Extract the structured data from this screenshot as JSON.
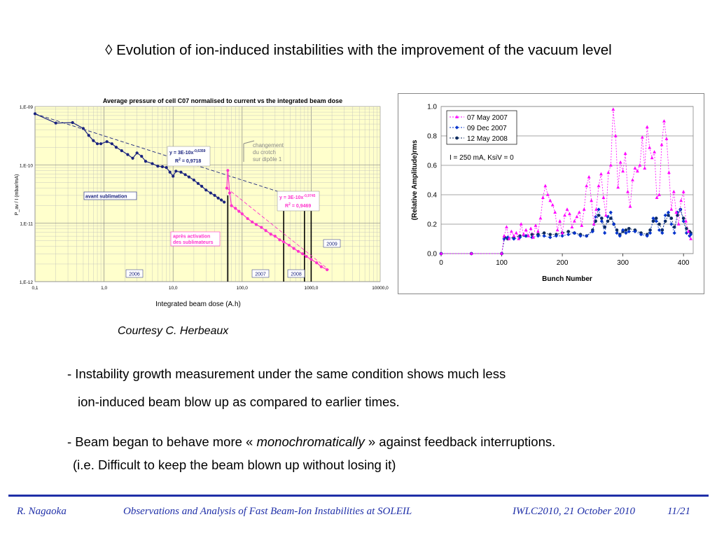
{
  "slide": {
    "title": "◊ Evolution of ion-induced instabilities with the improvement of the vacuum level",
    "courtesy": "Courtesy C. Herbeaux",
    "bullets": [
      "- Instability growth measurement under the same condition shows much less",
      "ion-induced beam blow up as compared to earlier times.",
      "- Beam began to behave more «",
      "monochromatically",
      "» against feedback interruptions.",
      "(i.e. Difficult to keep the beam blown up without losing it)"
    ],
    "footer": {
      "author": "R. Nagaoka",
      "talk": "Observations and Analysis of Fast Beam-Ion Instabilities at SOLEIL",
      "event": "IWLC2010, 21 October 2010",
      "page": "11/21"
    }
  },
  "chart_data": [
    {
      "type": "scatter",
      "title": "Average pressure of cell C07 normalised to current vs the integrated beam dose",
      "xlabel": "Integrated beam dose (A.h)",
      "ylabel": "P_av / I (mbar/mA)",
      "x_scale": "log",
      "y_scale": "log",
      "xlim": [
        0.1,
        10000
      ],
      "ylim": [
        1e-12,
        1e-09
      ],
      "x_ticks": [
        "0,1",
        "1,0",
        "10,0",
        "100,0",
        "1000,0",
        "10000,0"
      ],
      "y_ticks": [
        "1,E-12",
        "1,E-11",
        "1,E-10",
        "1,E-09"
      ],
      "grid": true,
      "series": [
        {
          "color": "#1a237e",
          "points": [
            [
              0.1,
              7.5e-10
            ],
            [
              0.2,
              5.2e-10
            ],
            [
              0.35,
              5.3e-10
            ],
            [
              0.5,
              4.2e-10
            ],
            [
              0.6,
              3.2e-10
            ],
            [
              0.7,
              2.6e-10
            ],
            [
              0.8,
              2.3e-10
            ],
            [
              0.9,
              2.3e-10
            ],
            [
              1.1,
              2.5e-10
            ],
            [
              1.3,
              2.3e-10
            ],
            [
              1.5,
              2e-10
            ],
            [
              1.8,
              1.75e-10
            ],
            [
              2.2,
              1.5e-10
            ],
            [
              2.6,
              1.3e-10
            ],
            [
              3.0,
              1.6e-10
            ],
            [
              3.5,
              1.4e-10
            ],
            [
              4,
              1.15e-10
            ],
            [
              5,
              1.05e-10
            ],
            [
              6,
              9.5e-11
            ],
            [
              7,
              9.3e-11
            ],
            [
              8,
              9e-11
            ],
            [
              9,
              7.5e-11
            ],
            [
              10,
              6.4e-11
            ],
            [
              11,
              7.8e-11
            ],
            [
              13,
              7.5e-11
            ],
            [
              15,
              6.8e-11
            ],
            [
              17,
              6.2e-11
            ],
            [
              20,
              5.5e-11
            ],
            [
              23,
              4.8e-11
            ],
            [
              26,
              4.3e-11
            ],
            [
              30,
              3.7e-11
            ],
            [
              35,
              3.3e-11
            ],
            [
              40,
              3e-11
            ],
            [
              45,
              2.7e-11
            ],
            [
              50,
              2.5e-11
            ],
            [
              55,
              2.3e-11
            ]
          ]
        },
        {
          "color": "#ff33cc",
          "points": [
            [
              60,
              4e-11
            ],
            [
              62,
              8e-11
            ],
            [
              66,
              3.3e-11
            ],
            [
              70,
              2e-11
            ],
            [
              80,
              1.8e-11
            ],
            [
              90,
              1.6e-11
            ],
            [
              100,
              1.45e-11
            ],
            [
              120,
              1.2e-11
            ],
            [
              140,
              1.05e-11
            ],
            [
              160,
              9.5e-12
            ],
            [
              190,
              8.5e-12
            ],
            [
              220,
              7.5e-12
            ],
            [
              260,
              6.5e-12
            ],
            [
              300,
              6e-12
            ],
            [
              350,
              5.2e-12
            ],
            [
              400,
              4.8e-12
            ],
            [
              480,
              4.2e-12
            ],
            [
              560,
              3.7e-12
            ],
            [
              650,
              3.3e-12
            ],
            [
              750,
              3e-12
            ],
            [
              850,
              2.7e-12
            ],
            [
              1000,
              2.4e-12
            ],
            [
              1200,
              2.1e-12
            ],
            [
              1400,
              1.8e-12
            ],
            [
              1700,
              1.6e-12
            ]
          ]
        }
      ],
      "fits": [
        {
          "label": "y = 3E-10x",
          "exponent": "-0,6359",
          "r2_label": "R",
          "r2_value": "= 0,9718",
          "x_range": [
            0.1,
            1000
          ]
        },
        {
          "label": "y = 3E-10x",
          "exponent": "-0,9745",
          "r2_label": "R",
          "r2_value": "= 0,9469",
          "x_range": [
            60,
            1800
          ]
        }
      ],
      "vertical_markers": [
        62,
        400,
        800,
        1000
      ],
      "annotations": [
        "changement",
        "du crotch",
        "sur dipôle 1",
        "avant sublimation",
        "après activation",
        "des sublimateurs"
      ],
      "year_labels": [
        "2006",
        "2007",
        "2008",
        "2009"
      ]
    },
    {
      "type": "line",
      "xlabel": "Bunch Number",
      "ylabel": "(Relative Amplitude)rms",
      "xlim": [
        0,
        416
      ],
      "ylim": [
        0,
        1
      ],
      "x_ticks": [
        "0",
        "100",
        "200",
        "300",
        "400"
      ],
      "y_ticks": [
        "0.0",
        "0.2",
        "0.4",
        "0.6",
        "0.8",
        "1.0"
      ],
      "grid": true,
      "legend_position": "top-left",
      "annotation": "I = 250 mA, KsiV = 0",
      "series": [
        {
          "name": "07 May 2007",
          "color": "#ff00ff",
          "marker": "triangle",
          "x": [
            0,
            50,
            100,
            104,
            108,
            112,
            116,
            120,
            124,
            128,
            132,
            136,
            140,
            144,
            148,
            152,
            156,
            160,
            164,
            168,
            172,
            176,
            180,
            184,
            188,
            192,
            196,
            200,
            204,
            208,
            212,
            216,
            220,
            224,
            228,
            232,
            236,
            240,
            244,
            248,
            252,
            256,
            260,
            264,
            268,
            272,
            276,
            280,
            284,
            288,
            292,
            296,
            300,
            304,
            308,
            312,
            316,
            320,
            324,
            328,
            332,
            336,
            340,
            344,
            348,
            352,
            356,
            360,
            364,
            368,
            372,
            376,
            380,
            384,
            388,
            392,
            396,
            400,
            404,
            408,
            412
          ],
          "values": [
            0,
            0,
            0,
            0.12,
            0.18,
            0.1,
            0.15,
            0.12,
            0.14,
            0.1,
            0.2,
            0.13,
            0.16,
            0.12,
            0.17,
            0.11,
            0.19,
            0.15,
            0.24,
            0.38,
            0.46,
            0.4,
            0.36,
            0.33,
            0.28,
            0.16,
            0.22,
            0.14,
            0.26,
            0.3,
            0.27,
            0.18,
            0.22,
            0.25,
            0.28,
            0.19,
            0.3,
            0.46,
            0.52,
            0.36,
            0.2,
            0.3,
            0.46,
            0.54,
            0.38,
            0.26,
            0.55,
            0.6,
            0.98,
            0.8,
            0.45,
            0.62,
            0.56,
            0.68,
            0.42,
            0.32,
            0.5,
            0.58,
            0.56,
            0.6,
            0.79,
            0.58,
            0.86,
            0.72,
            0.65,
            0.69,
            0.38,
            0.4,
            0.74,
            0.9,
            0.78,
            0.55,
            0.3,
            0.42,
            0.28,
            0.2,
            0.36,
            0.42,
            0.22,
            0.15,
            0.1
          ]
        },
        {
          "name": "09 Dec 2007",
          "color": "#0033cc",
          "marker": "diamond",
          "x": [
            0,
            50,
            100,
            104,
            110,
            120,
            130,
            140,
            150,
            160,
            170,
            180,
            190,
            200,
            210,
            220,
            230,
            240,
            250,
            255,
            260,
            265,
            270,
            275,
            280,
            285,
            290,
            295,
            300,
            305,
            310,
            320,
            330,
            340,
            345,
            350,
            355,
            360,
            365,
            370,
            375,
            380,
            385,
            390,
            395,
            400,
            405,
            410,
            412
          ],
          "values": [
            0,
            0,
            0,
            0.1,
            0.11,
            0.1,
            0.11,
            0.12,
            0.11,
            0.12,
            0.12,
            0.11,
            0.12,
            0.12,
            0.13,
            0.14,
            0.12,
            0.12,
            0.15,
            0.25,
            0.3,
            0.22,
            0.14,
            0.25,
            0.28,
            0.2,
            0.14,
            0.12,
            0.16,
            0.14,
            0.15,
            0.15,
            0.13,
            0.12,
            0.14,
            0.24,
            0.22,
            0.16,
            0.14,
            0.26,
            0.28,
            0.2,
            0.14,
            0.28,
            0.3,
            0.22,
            0.14,
            0.12,
            0.13
          ]
        },
        {
          "name": "12 May 2008",
          "color": "#0d2b5e",
          "marker": "circle",
          "x": [
            0,
            50,
            100,
            105,
            110,
            120,
            130,
            140,
            150,
            160,
            170,
            180,
            190,
            200,
            210,
            220,
            230,
            240,
            250,
            255,
            260,
            265,
            270,
            275,
            280,
            285,
            290,
            295,
            300,
            305,
            310,
            320,
            330,
            340,
            345,
            350,
            355,
            360,
            365,
            370,
            375,
            380,
            385,
            390,
            395,
            400,
            405,
            410,
            412
          ],
          "values": [
            0,
            0,
            0,
            0.11,
            0.1,
            0.11,
            0.12,
            0.12,
            0.13,
            0.13,
            0.14,
            0.13,
            0.13,
            0.14,
            0.15,
            0.14,
            0.13,
            0.12,
            0.16,
            0.22,
            0.26,
            0.24,
            0.18,
            0.22,
            0.24,
            0.2,
            0.16,
            0.13,
            0.15,
            0.16,
            0.17,
            0.16,
            0.14,
            0.13,
            0.16,
            0.22,
            0.24,
            0.2,
            0.16,
            0.22,
            0.26,
            0.24,
            0.18,
            0.26,
            0.3,
            0.24,
            0.17,
            0.15,
            0.14
          ]
        }
      ]
    }
  ]
}
